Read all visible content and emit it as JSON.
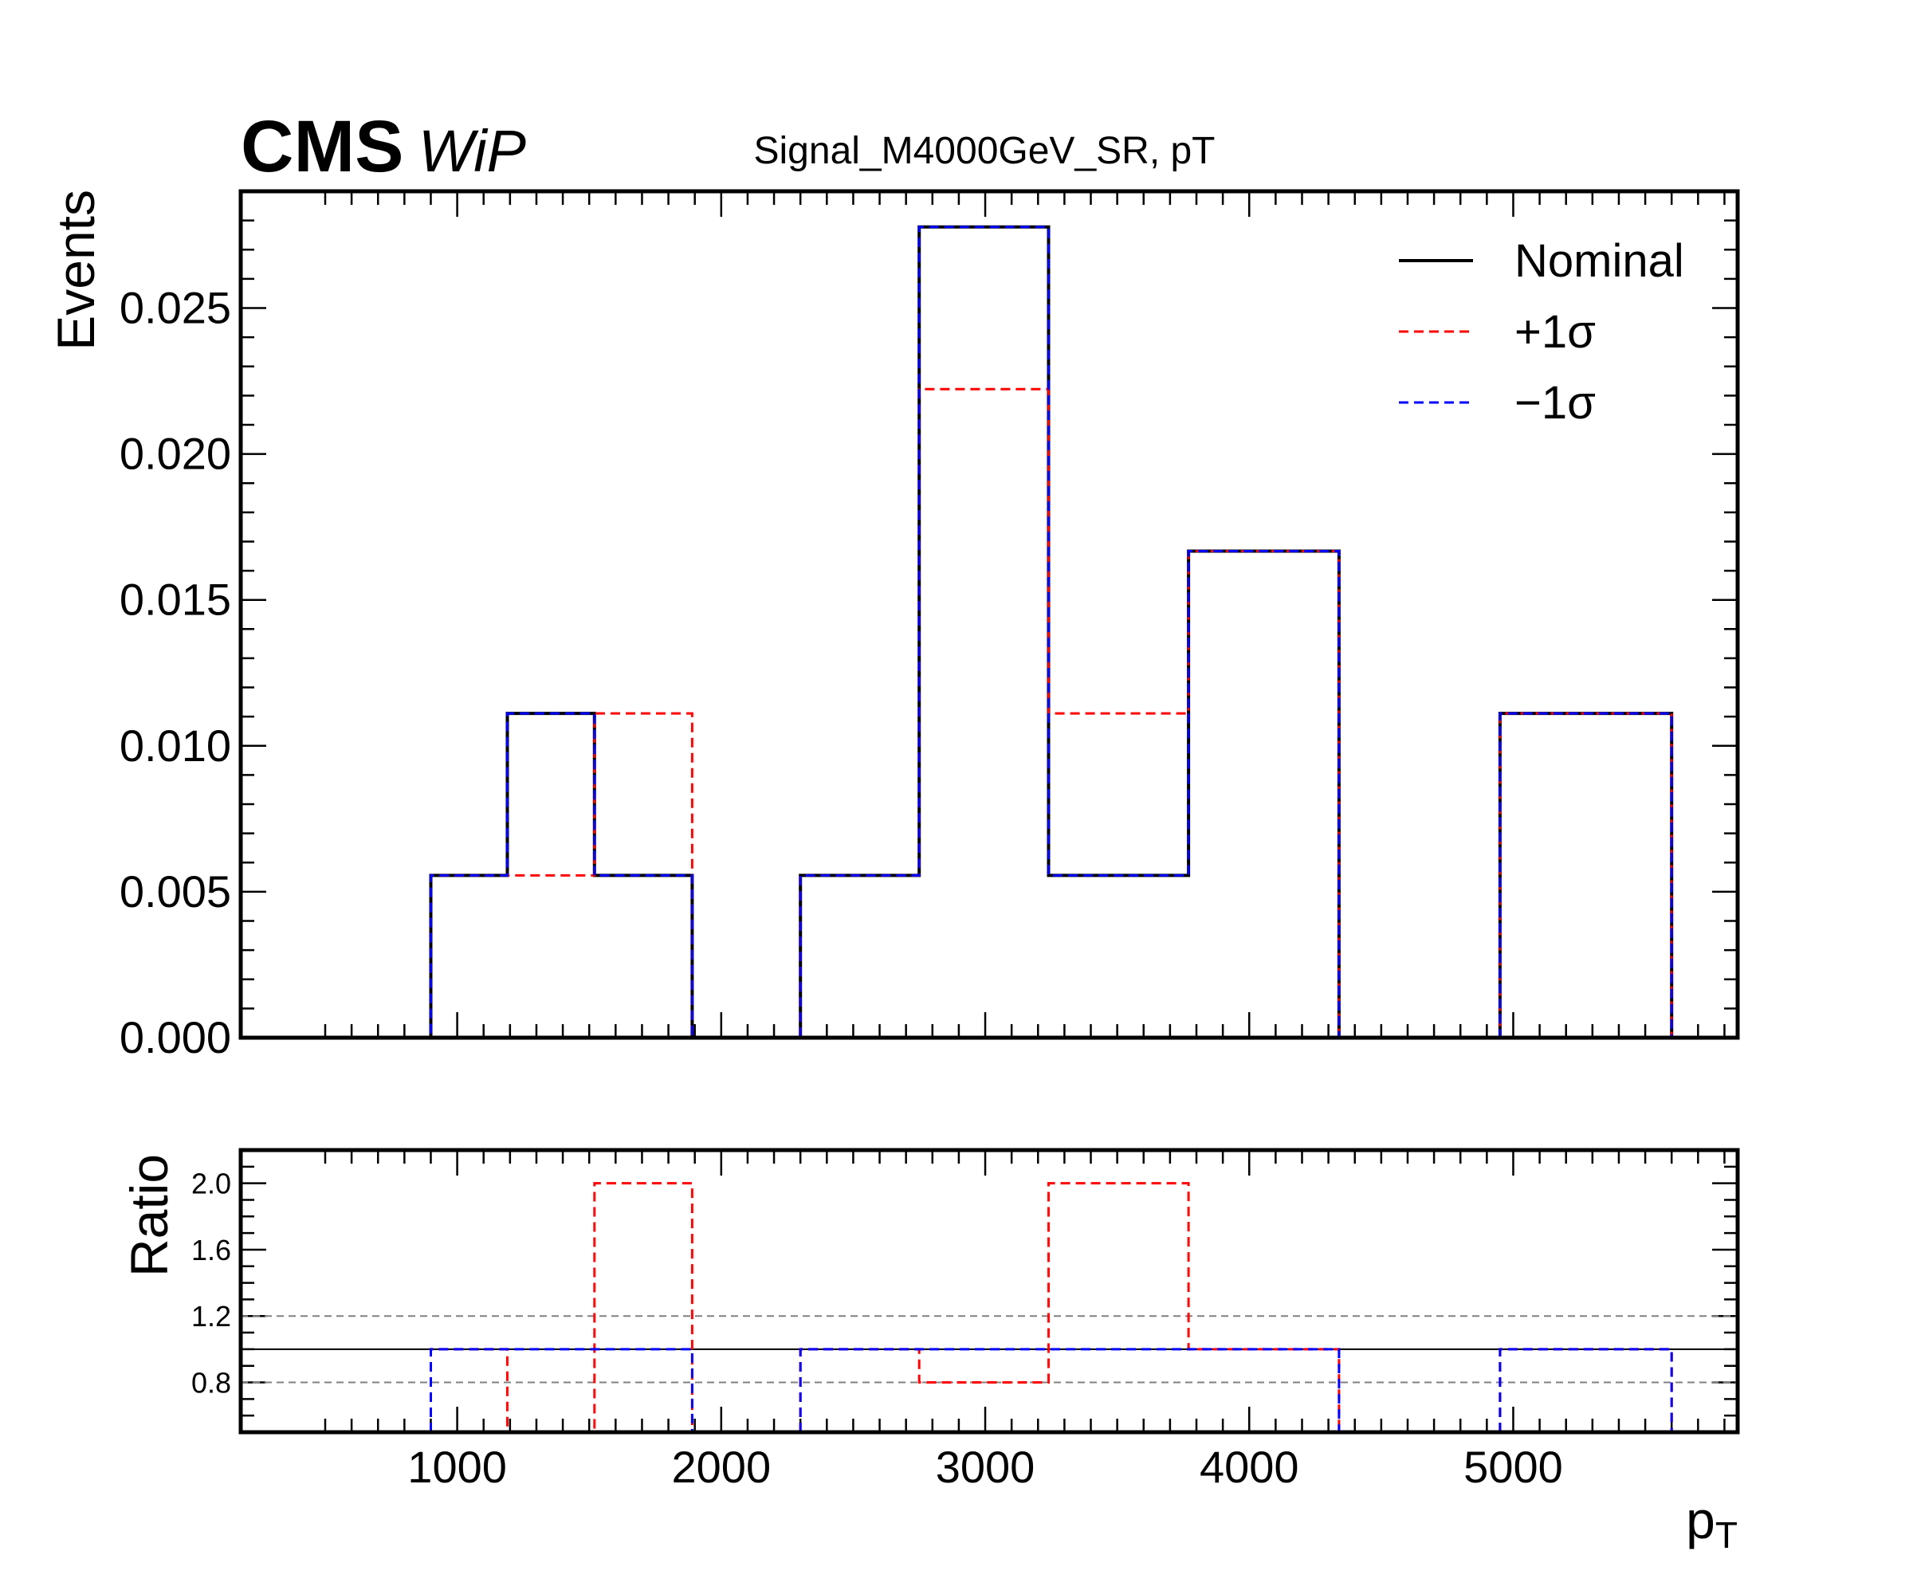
{
  "header": {
    "experiment": "CMS",
    "status": "WiP",
    "title": "Signal_M4000GeV_SR, pT"
  },
  "colors": {
    "nominal": "#000000",
    "up": "#ff0000",
    "down": "#0000ff",
    "reference_lines": "#808080"
  },
  "chart_data": [
    {
      "type": "histogram",
      "panel": "main",
      "ylabel": "Events",
      "xlim": [
        180,
        5850
      ],
      "ylim": [
        0,
        0.029
      ],
      "yticks": [
        "0.000",
        "0.005",
        "0.010",
        "0.015",
        "0.020",
        "0.025"
      ],
      "yticks_values": [
        0,
        0.005,
        0.01,
        0.015,
        0.02,
        0.025
      ],
      "legend": {
        "placement": "top-right",
        "entries": [
          "Nominal",
          "+1σ",
          "−1σ"
        ]
      },
      "bin_edges": [
        400,
        900,
        1190,
        1520,
        1890,
        2300,
        2750,
        3240,
        3770,
        4340,
        4950,
        5600
      ],
      "series": [
        {
          "name": "Nominal",
          "style": "solid",
          "values": [
            0,
            0.00556,
            0.01111,
            0.00556,
            0,
            0.00556,
            0.02778,
            0.00556,
            0.01667,
            0,
            0.01111
          ]
        },
        {
          "name": "+1σ",
          "style": "dashed",
          "values": [
            0,
            0.00556,
            0.00556,
            0.01111,
            0,
            0.00556,
            0.02222,
            0.01111,
            0.01667,
            0,
            0.01111
          ]
        },
        {
          "name": "−1σ",
          "style": "dashed",
          "values": [
            0,
            0.00556,
            0.01111,
            0.00556,
            0,
            0.00556,
            0.02778,
            0.00556,
            0.01667,
            0,
            0.01111
          ]
        }
      ]
    },
    {
      "type": "line",
      "panel": "ratio",
      "ylabel": "Ratio",
      "xlabel_base": "p",
      "xlabel_sub": "T",
      "xlim": [
        180,
        5850
      ],
      "ylim": [
        0.5,
        2.2
      ],
      "xticks": [
        "1000",
        "2000",
        "3000",
        "4000",
        "5000"
      ],
      "xticks_values": [
        1000,
        2000,
        3000,
        4000,
        5000
      ],
      "yticks": [
        "0.8",
        "1.2",
        "1.6",
        "2.0"
      ],
      "yticks_values": [
        0.8,
        1.2,
        1.6,
        2.0
      ],
      "reference_lines": [
        1.0,
        0.8,
        1.2
      ],
      "bin_edges": [
        400,
        900,
        1190,
        1520,
        1890,
        2300,
        2750,
        3240,
        3770,
        4340,
        4950,
        5600
      ],
      "series": [
        {
          "name": "+1σ",
          "style": "dashed",
          "values": [
            null,
            1.0,
            0.5,
            2.0,
            null,
            1.0,
            0.8,
            2.0,
            1.0,
            null,
            1.0
          ]
        },
        {
          "name": "−1σ",
          "style": "dashed",
          "values": [
            null,
            1.0,
            1.0,
            1.0,
            null,
            1.0,
            1.0,
            1.0,
            1.0,
            null,
            1.0
          ]
        }
      ]
    }
  ]
}
